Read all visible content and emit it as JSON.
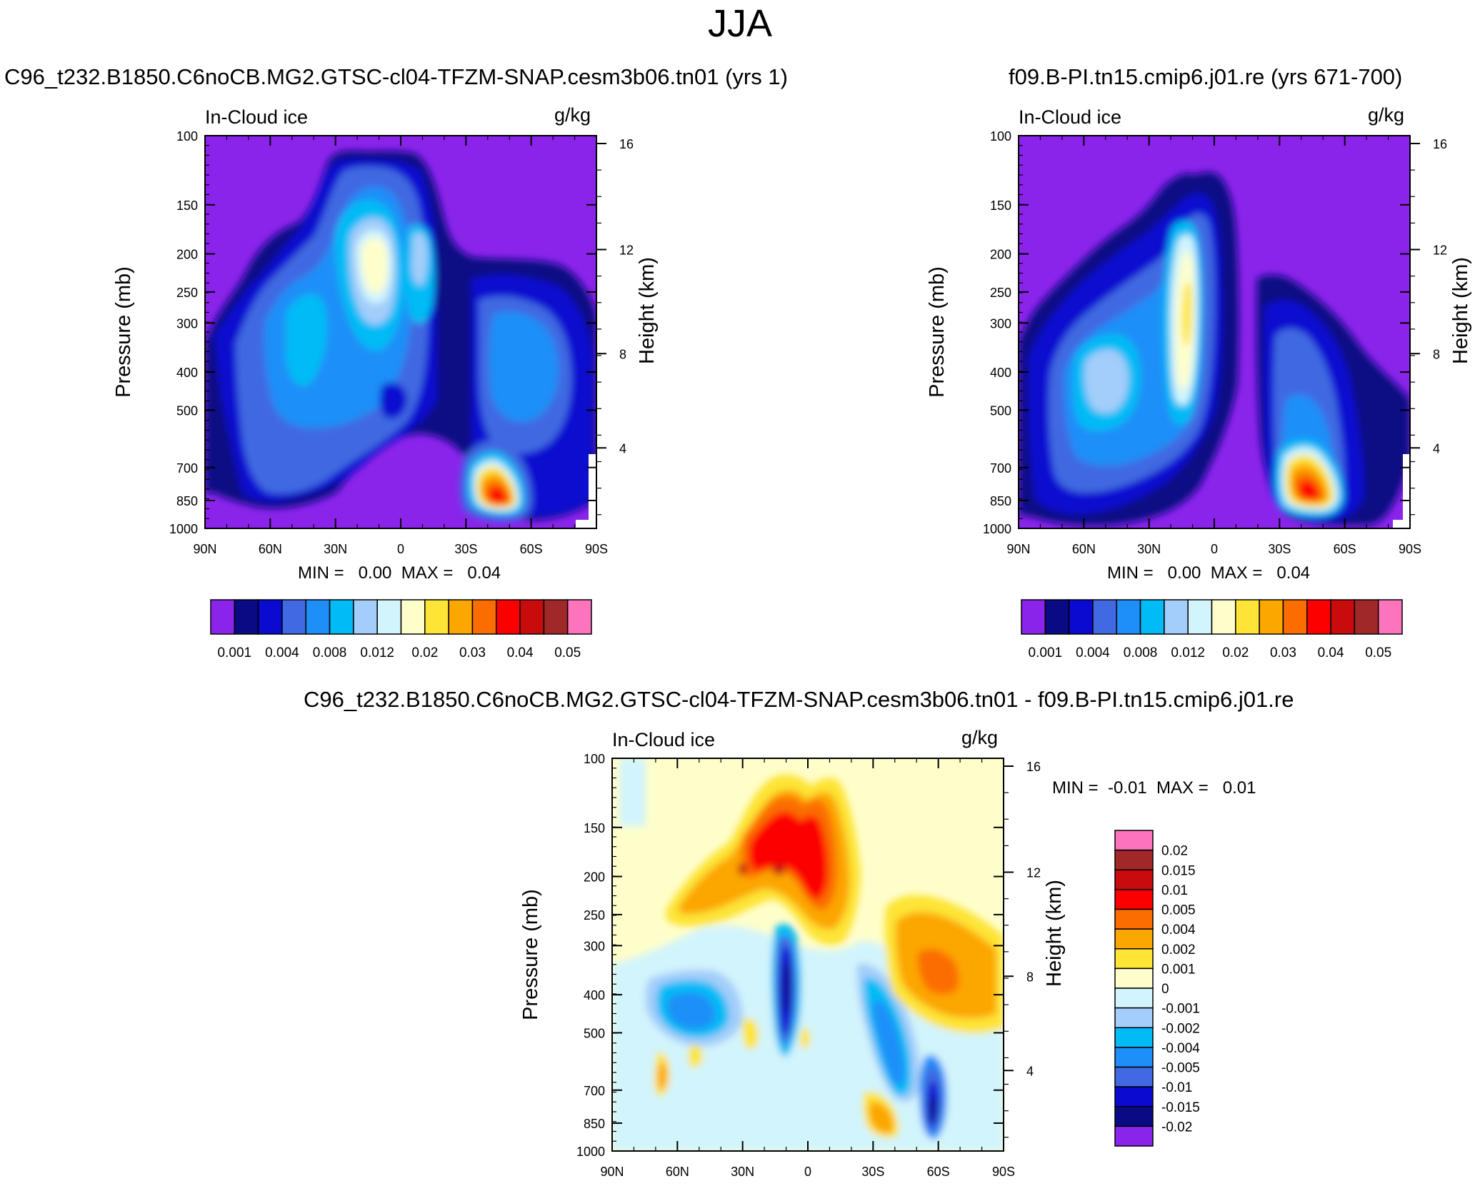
{
  "page": {
    "title": "JJA"
  },
  "panels": [
    {
      "id": "top-left",
      "title": "C96_t232.B1850.C6noCB.MG2.GTSC-cl04-TFZM-SNAP.cesm3b06.tn01 (yrs 1)",
      "variable": "In-Cloud ice",
      "units": "g/kg",
      "ylabel": "Pressure (mb)",
      "ylabel_right": "Height (km)",
      "min_label": "MIN =   0.00  MAX =   0.04"
    },
    {
      "id": "top-right",
      "title": "f09.B-PI.tn15.cmip6.j01.re (yrs 671-700)",
      "variable": "In-Cloud ice",
      "units": "g/kg",
      "ylabel": "Pressure (mb)",
      "ylabel_right": "Height (km)",
      "min_label": "MIN =   0.00  MAX =   0.04"
    },
    {
      "id": "bottom-diff",
      "title": "C96_t232.B1850.C6noCB.MG2.GTSC-cl04-TFZM-SNAP.cesm3b06.tn01 - f09.B-PI.tn15.cmip6.j01.re",
      "variable": "In-Cloud ice",
      "units": "g/kg",
      "ylabel": "Pressure (mb)",
      "ylabel_right": "Height (km)",
      "min_label": "MIN =  -0.01  MAX =   0.01"
    }
  ],
  "chart_data": [
    {
      "type": "heatmap",
      "title": "C96_t232.B1850.C6noCB.MG2.GTSC-cl04-TFZM-SNAP.cesm3b06.tn01 (yrs 1)",
      "xlabel": "",
      "ylabel": "Pressure (mb)",
      "x_ticks": [
        "90N",
        "60N",
        "30N",
        "0",
        "30S",
        "60S",
        "90S"
      ],
      "y_ticks": [
        "100",
        "150",
        "200",
        "250",
        "300",
        "400",
        "500",
        "700",
        "850",
        "1000"
      ],
      "y2_ticks": [
        "16",
        "12",
        "8",
        "4"
      ],
      "colorbar_labels": [
        "0.001",
        "0.004",
        "0.008",
        "0.012",
        "0.02",
        "0.03",
        "0.04",
        "0.05"
      ],
      "colorbar_colors": [
        "#8a24ea",
        "#0a0a84",
        "#0a0ad0",
        "#4169e1",
        "#1e8ff8",
        "#00bbf5",
        "#a3cdfa",
        "#d2f4fc",
        "#fefecb",
        "#fde436",
        "#fca600",
        "#fb6d00",
        "#fc0000",
        "#c80b0b",
        "#a02828",
        "#fd74bd"
      ],
      "stats": {
        "min": "0.00",
        "max": "0.04"
      }
    },
    {
      "type": "heatmap",
      "title": "f09.B-PI.tn15.cmip6.j01.re (yrs 671-700)",
      "xlabel": "",
      "ylabel": "Pressure (mb)",
      "x_ticks": [
        "90N",
        "60N",
        "30N",
        "0",
        "30S",
        "60S",
        "90S"
      ],
      "y_ticks": [
        "100",
        "150",
        "200",
        "250",
        "300",
        "400",
        "500",
        "700",
        "850",
        "1000"
      ],
      "y2_ticks": [
        "16",
        "12",
        "8",
        "4"
      ],
      "colorbar_labels": [
        "0.001",
        "0.004",
        "0.008",
        "0.012",
        "0.02",
        "0.03",
        "0.04",
        "0.05"
      ],
      "colorbar_colors": [
        "#8a24ea",
        "#0a0a84",
        "#0a0ad0",
        "#4169e1",
        "#1e8ff8",
        "#00bbf5",
        "#a3cdfa",
        "#d2f4fc",
        "#fefecb",
        "#fde436",
        "#fca600",
        "#fb6d00",
        "#fc0000",
        "#c80b0b",
        "#a02828",
        "#fd74bd"
      ],
      "stats": {
        "min": "0.00",
        "max": "0.04"
      }
    },
    {
      "type": "heatmap",
      "title": "C96_t232.B1850.C6noCB.MG2.GTSC-cl04-TFZM-SNAP.cesm3b06.tn01 - f09.B-PI.tn15.cmip6.j01.re",
      "xlabel": "",
      "ylabel": "Pressure (mb)",
      "x_ticks": [
        "90N",
        "60N",
        "30N",
        "0",
        "30S",
        "60S",
        "90S"
      ],
      "y_ticks": [
        "100",
        "150",
        "200",
        "250",
        "300",
        "400",
        "500",
        "700",
        "850",
        "1000"
      ],
      "y2_ticks": [
        "16",
        "12",
        "8",
        "4"
      ],
      "colorbar_labels": [
        "0.02",
        "0.015",
        "0.01",
        "0.005",
        "0.004",
        "0.002",
        "0.001",
        "0",
        "-0.001",
        "-0.002",
        "-0.004",
        "-0.005",
        "-0.01",
        "-0.015",
        "-0.02"
      ],
      "colorbar_colors": [
        "#fd74bd",
        "#a02828",
        "#c80b0b",
        "#fc0000",
        "#fb6d00",
        "#fca600",
        "#fde436",
        "#fefecb",
        "#d2f4fc",
        "#a3cdfa",
        "#00bbf5",
        "#1e8ff8",
        "#4169e1",
        "#0a0ad0",
        "#0a0a84",
        "#8a24ea"
      ],
      "stats": {
        "min": "-0.01",
        "max": "0.01"
      }
    }
  ]
}
